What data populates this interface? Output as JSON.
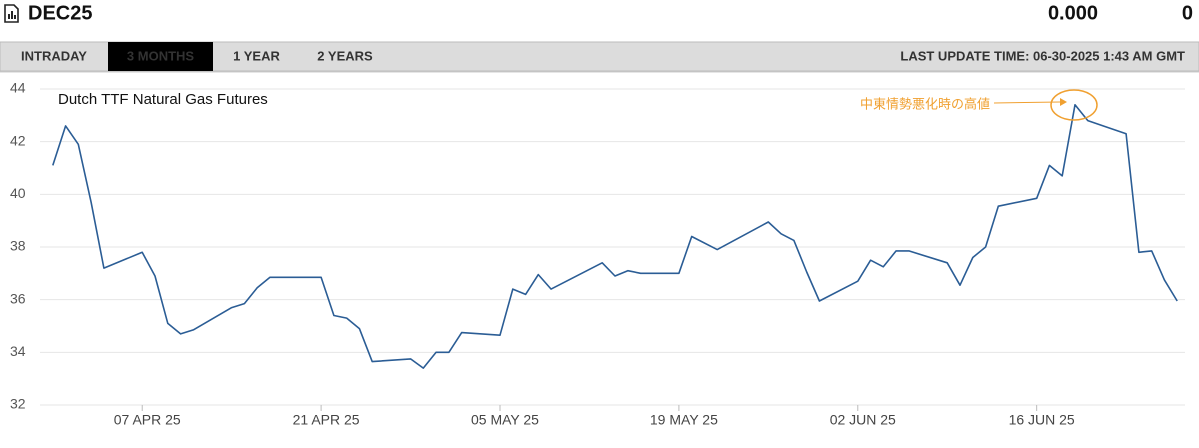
{
  "header": {
    "symbol": "DEC25",
    "price": "0.000",
    "change": "0"
  },
  "tabs": [
    "INTRADAY",
    "3 MONTHS",
    "1 YEAR",
    "2 YEARS"
  ],
  "active_tab": 1,
  "last_update": "LAST UPDATE TIME: 06-30-2025 1:43 AM GMT",
  "chart_data": {
    "type": "line",
    "title": "Dutch TTF Natural Gas Futures",
    "annotation": "中東情勢悪化時の高値",
    "color": "#2b5d95",
    "annotation_color": "#f0a030",
    "x": [
      "2025-03-31",
      "2025-04-01",
      "2025-04-02",
      "2025-04-03",
      "2025-04-04",
      "2025-04-07",
      "2025-04-08",
      "2025-04-09",
      "2025-04-10",
      "2025-04-11",
      "2025-04-14",
      "2025-04-15",
      "2025-04-16",
      "2025-04-17",
      "2025-04-21",
      "2025-04-22",
      "2025-04-23",
      "2025-04-24",
      "2025-04-25",
      "2025-04-28",
      "2025-04-29",
      "2025-04-30",
      "2025-05-01",
      "2025-05-02",
      "2025-05-05",
      "2025-05-06",
      "2025-05-07",
      "2025-05-08",
      "2025-05-09",
      "2025-05-13",
      "2025-05-14",
      "2025-05-15",
      "2025-05-16",
      "2025-05-19",
      "2025-05-20",
      "2025-05-22",
      "2025-05-26",
      "2025-05-27",
      "2025-05-28",
      "2025-05-29",
      "2025-05-30",
      "2025-06-02",
      "2025-06-03",
      "2025-06-04",
      "2025-06-05",
      "2025-06-06",
      "2025-06-09",
      "2025-06-10",
      "2025-06-11",
      "2025-06-12",
      "2025-06-13",
      "2025-06-16",
      "2025-06-17",
      "2025-06-18",
      "2025-06-19",
      "2025-06-20",
      "2025-06-23",
      "2025-06-24",
      "2025-06-25",
      "2025-06-26",
      "2025-06-27"
    ],
    "values": [
      41.1,
      42.6,
      41.9,
      39.7,
      37.2,
      37.8,
      36.9,
      35.1,
      34.7,
      34.85,
      35.7,
      35.85,
      36.45,
      36.85,
      36.85,
      35.4,
      35.3,
      34.9,
      33.65,
      33.75,
      33.4,
      34.0,
      34.0,
      34.75,
      34.65,
      36.4,
      36.2,
      36.95,
      36.4,
      37.4,
      36.9,
      37.1,
      37.0,
      37.0,
      38.4,
      37.9,
      38.95,
      38.5,
      38.25,
      37.05,
      35.95,
      36.7,
      37.5,
      37.25,
      37.85,
      37.85,
      37.4,
      36.55,
      37.6,
      38.0,
      39.55,
      39.85,
      41.1,
      40.7,
      43.4,
      42.8,
      42.3,
      37.8,
      37.85,
      36.75,
      35.95
    ],
    "xlim": [
      "2025-03-30",
      "2025-06-28"
    ],
    "xticks": [
      {
        "value": "2025-04-07",
        "label": "07 APR 25"
      },
      {
        "value": "2025-04-21",
        "label": "21 APR 25"
      },
      {
        "value": "2025-05-05",
        "label": "05 MAY 25"
      },
      {
        "value": "2025-05-19",
        "label": "19 MAY 25"
      },
      {
        "value": "2025-06-02",
        "label": "02 JUN 25"
      },
      {
        "value": "2025-06-16",
        "label": "16 JUN 25"
      }
    ],
    "ylim": [
      32,
      44
    ],
    "yticks": [
      32,
      34,
      36,
      38,
      40,
      42,
      44
    ],
    "grid": true
  }
}
